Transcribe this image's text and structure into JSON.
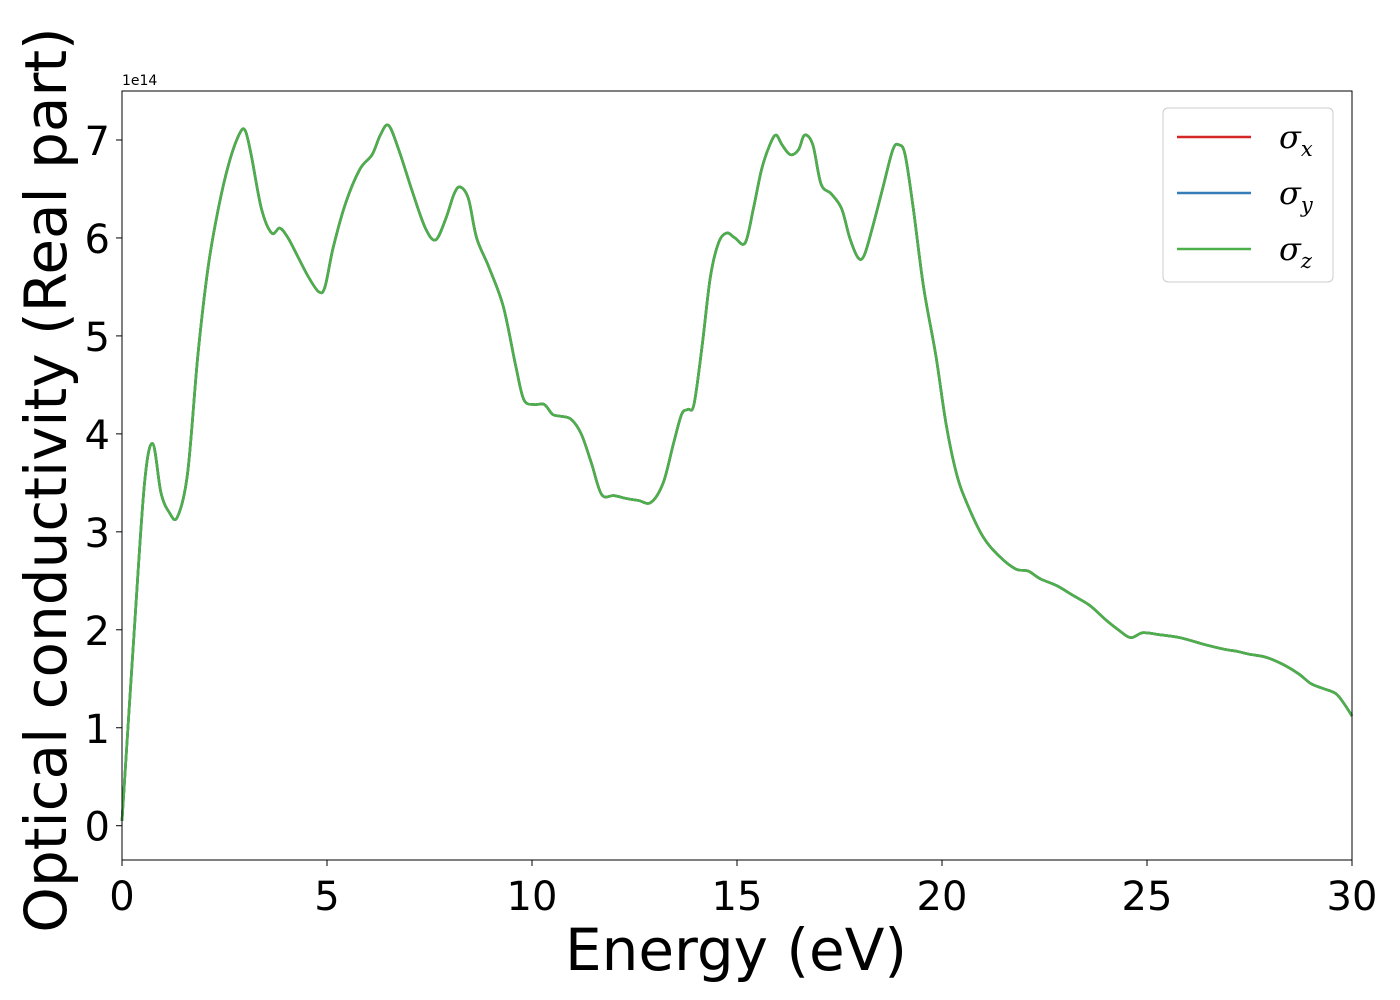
{
  "chart_data": {
    "type": "line",
    "title": "",
    "xlabel": "Energy (eV)",
    "ylabel": "Optical conductivity (Real part)",
    "y_offset_text": "1e14",
    "y_multiplier": 100000000000000.0,
    "xlim": [
      0,
      30
    ],
    "ylim": [
      -0.35,
      7.5
    ],
    "x_ticks": [
      0,
      5,
      10,
      15,
      20,
      25,
      30
    ],
    "y_ticks": [
      0,
      1,
      2,
      3,
      4,
      5,
      6,
      7
    ],
    "grid": false,
    "legend_position": "top-right",
    "x": [
      0,
      0.3,
      0.55,
      0.75,
      0.95,
      1.15,
      1.35,
      1.6,
      1.85,
      2.1,
      2.35,
      2.6,
      2.85,
      3.0,
      3.15,
      3.4,
      3.65,
      3.85,
      4.05,
      4.3,
      4.55,
      4.8,
      4.95,
      5.15,
      5.45,
      5.8,
      6.1,
      6.3,
      6.5,
      6.75,
      7.1,
      7.4,
      7.65,
      7.9,
      8.1,
      8.25,
      8.45,
      8.65,
      8.95,
      9.3,
      9.6,
      9.8,
      10.05,
      10.3,
      10.5,
      10.7,
      10.95,
      11.2,
      11.45,
      11.7,
      12.0,
      12.3,
      12.6,
      12.9,
      13.2,
      13.45,
      13.65,
      13.8,
      13.95,
      14.15,
      14.35,
      14.55,
      14.75,
      14.95,
      15.2,
      15.4,
      15.6,
      15.8,
      15.95,
      16.1,
      16.3,
      16.5,
      16.65,
      16.85,
      17.05,
      17.3,
      17.55,
      17.75,
      17.95,
      18.1,
      18.3,
      18.55,
      18.8,
      18.95,
      19.1,
      19.3,
      19.55,
      19.85,
      20.1,
      20.35,
      20.6,
      21.0,
      21.4,
      21.8,
      22.1,
      22.4,
      22.8,
      23.2,
      23.6,
      24.0,
      24.3,
      24.6,
      24.9,
      25.3,
      25.8,
      26.4,
      26.9,
      27.2,
      27.5,
      27.9,
      28.3,
      28.7,
      29.0,
      29.3,
      29.6,
      29.8,
      30.0
    ],
    "series": [
      {
        "name": "σx",
        "label_base": "σ",
        "label_sub": "x",
        "color": "#d62728",
        "values": [
          0.05,
          2.0,
          3.5,
          3.9,
          3.4,
          3.2,
          3.15,
          3.6,
          4.8,
          5.7,
          6.3,
          6.75,
          7.05,
          7.1,
          6.85,
          6.3,
          6.05,
          6.1,
          6.0,
          5.8,
          5.6,
          5.45,
          5.5,
          5.9,
          6.35,
          6.7,
          6.85,
          7.05,
          7.15,
          6.9,
          6.45,
          6.1,
          5.98,
          6.2,
          6.45,
          6.52,
          6.4,
          6.0,
          5.7,
          5.3,
          4.7,
          4.35,
          4.3,
          4.3,
          4.2,
          4.18,
          4.15,
          4.0,
          3.7,
          3.38,
          3.37,
          3.34,
          3.32,
          3.3,
          3.5,
          3.9,
          4.2,
          4.25,
          4.3,
          4.9,
          5.6,
          5.95,
          6.05,
          6.0,
          5.95,
          6.3,
          6.7,
          6.95,
          7.05,
          6.95,
          6.85,
          6.9,
          7.05,
          6.95,
          6.55,
          6.45,
          6.3,
          6.0,
          5.8,
          5.82,
          6.1,
          6.5,
          6.9,
          6.95,
          6.85,
          6.3,
          5.5,
          4.8,
          4.1,
          3.6,
          3.3,
          2.95,
          2.75,
          2.62,
          2.6,
          2.52,
          2.45,
          2.35,
          2.25,
          2.1,
          2.0,
          1.92,
          1.97,
          1.95,
          1.92,
          1.85,
          1.8,
          1.78,
          1.75,
          1.72,
          1.65,
          1.55,
          1.45,
          1.4,
          1.35,
          1.25,
          1.12
        ]
      },
      {
        "name": "σy",
        "label_base": "σ",
        "label_sub": "y",
        "color": "#377eb8",
        "values": [
          0.05,
          2.0,
          3.5,
          3.9,
          3.4,
          3.2,
          3.15,
          3.6,
          4.8,
          5.7,
          6.3,
          6.75,
          7.05,
          7.1,
          6.85,
          6.3,
          6.05,
          6.1,
          6.0,
          5.8,
          5.6,
          5.45,
          5.5,
          5.9,
          6.35,
          6.7,
          6.85,
          7.05,
          7.15,
          6.9,
          6.45,
          6.1,
          5.98,
          6.2,
          6.45,
          6.52,
          6.4,
          6.0,
          5.7,
          5.3,
          4.7,
          4.35,
          4.3,
          4.3,
          4.2,
          4.18,
          4.15,
          4.0,
          3.7,
          3.38,
          3.37,
          3.34,
          3.32,
          3.3,
          3.5,
          3.9,
          4.2,
          4.25,
          4.3,
          4.9,
          5.6,
          5.95,
          6.05,
          6.0,
          5.95,
          6.3,
          6.7,
          6.95,
          7.05,
          6.95,
          6.85,
          6.9,
          7.05,
          6.95,
          6.55,
          6.45,
          6.3,
          6.0,
          5.8,
          5.82,
          6.1,
          6.5,
          6.9,
          6.95,
          6.85,
          6.3,
          5.5,
          4.8,
          4.1,
          3.6,
          3.3,
          2.95,
          2.75,
          2.62,
          2.6,
          2.52,
          2.45,
          2.35,
          2.25,
          2.1,
          2.0,
          1.92,
          1.97,
          1.95,
          1.92,
          1.85,
          1.8,
          1.78,
          1.75,
          1.72,
          1.65,
          1.55,
          1.45,
          1.4,
          1.35,
          1.25,
          1.12
        ]
      },
      {
        "name": "σz",
        "label_base": "σ",
        "label_sub": "z",
        "color": "#4daf4a",
        "values": [
          0.05,
          2.0,
          3.5,
          3.9,
          3.4,
          3.2,
          3.15,
          3.6,
          4.8,
          5.7,
          6.3,
          6.75,
          7.05,
          7.1,
          6.85,
          6.3,
          6.05,
          6.1,
          6.0,
          5.8,
          5.6,
          5.45,
          5.5,
          5.9,
          6.35,
          6.7,
          6.85,
          7.05,
          7.15,
          6.9,
          6.45,
          6.1,
          5.98,
          6.2,
          6.45,
          6.52,
          6.4,
          6.0,
          5.7,
          5.3,
          4.7,
          4.35,
          4.3,
          4.3,
          4.2,
          4.18,
          4.15,
          4.0,
          3.7,
          3.38,
          3.37,
          3.34,
          3.32,
          3.3,
          3.5,
          3.9,
          4.2,
          4.25,
          4.3,
          4.9,
          5.6,
          5.95,
          6.05,
          6.0,
          5.95,
          6.3,
          6.7,
          6.95,
          7.05,
          6.95,
          6.85,
          6.9,
          7.05,
          6.95,
          6.55,
          6.45,
          6.3,
          6.0,
          5.8,
          5.82,
          6.1,
          6.5,
          6.9,
          6.95,
          6.85,
          6.3,
          5.5,
          4.8,
          4.1,
          3.6,
          3.3,
          2.95,
          2.75,
          2.62,
          2.6,
          2.52,
          2.45,
          2.35,
          2.25,
          2.1,
          2.0,
          1.92,
          1.97,
          1.95,
          1.92,
          1.85,
          1.8,
          1.78,
          1.75,
          1.72,
          1.65,
          1.55,
          1.45,
          1.4,
          1.35,
          1.25,
          1.12
        ]
      }
    ]
  }
}
